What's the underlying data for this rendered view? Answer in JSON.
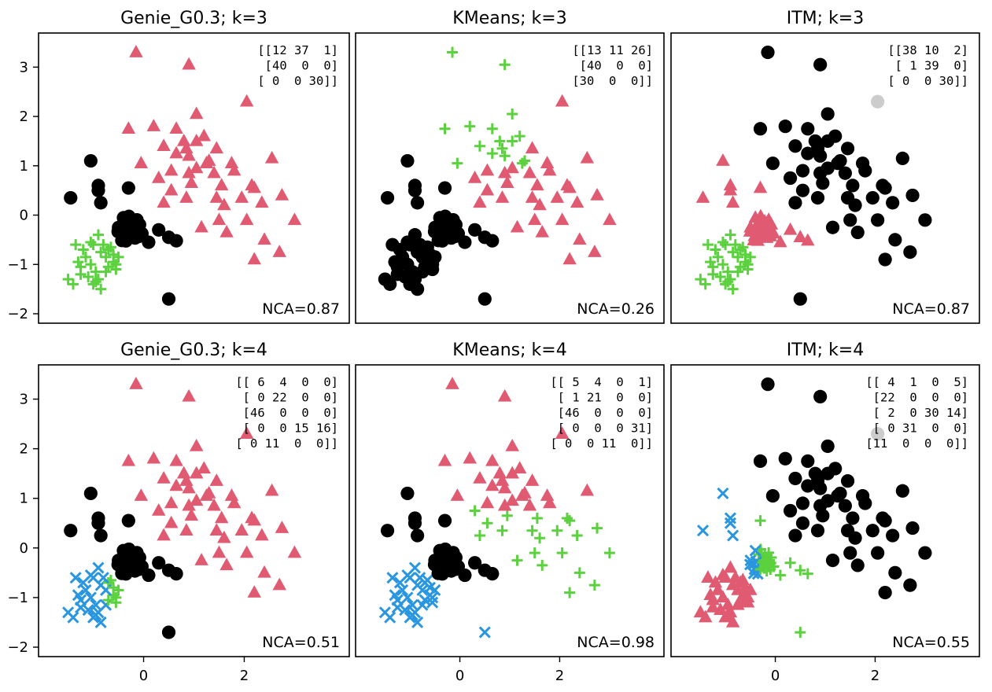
{
  "colors": {
    "black": "#000000",
    "red": "#e05a72",
    "green": "#5cd13f",
    "blue": "#2a96e0",
    "gray": "#cccccc"
  },
  "marker_names": {
    "black": "circle",
    "red": "triangle",
    "green": "plus",
    "blue": "x"
  },
  "chart_data": [
    {
      "type": "scatter",
      "title": "Genie_G0.3; k=3",
      "nca_label": "NCA=0.87",
      "confusion_lines": [
        "[[12 37  1]",
        " [40  0  0]",
        " [ 0  0 30]]"
      ],
      "xlim": [
        -1.9,
        3.9
      ],
      "ylim": [
        -2,
        3.5
      ],
      "xticks": [
        {
          "v": 0,
          "label": "0"
        },
        {
          "v": 2,
          "label": "2"
        }
      ],
      "yticks": [
        {
          "v": -2,
          "label": "−2"
        },
        {
          "v": -1,
          "label": "−1"
        },
        {
          "v": 0,
          "label": "0"
        },
        {
          "v": 1,
          "label": "1"
        },
        {
          "v": 2,
          "label": "2"
        },
        {
          "v": 3,
          "label": "3"
        }
      ],
      "show_xticks": false,
      "show_yticks": true
    },
    {
      "type": "scatter",
      "title": "KMeans; k=3",
      "nca_label": "NCA=0.26",
      "confusion_lines": [
        "[[13 11 26]",
        " [40  0  0]",
        " [30  0  0]]"
      ],
      "xlim": [
        -1.9,
        3.9
      ],
      "ylim": [
        -2,
        3.5
      ],
      "xticks": [
        {
          "v": 0,
          "label": "0"
        },
        {
          "v": 2,
          "label": "2"
        }
      ],
      "yticks": [
        {
          "v": -2,
          "label": "−2"
        },
        {
          "v": -1,
          "label": "−1"
        },
        {
          "v": 0,
          "label": "0"
        },
        {
          "v": 1,
          "label": "1"
        },
        {
          "v": 2,
          "label": "2"
        },
        {
          "v": 3,
          "label": "3"
        }
      ],
      "show_xticks": false,
      "show_yticks": false
    },
    {
      "type": "scatter",
      "title": "ITM; k=3",
      "nca_label": "NCA=0.87",
      "confusion_lines": [
        "[[38 10  2]",
        " [ 1 39  0]",
        " [ 0  0 30]]"
      ],
      "xlim": [
        -1.9,
        3.9
      ],
      "ylim": [
        -2,
        3.5
      ],
      "xticks": [
        {
          "v": 0,
          "label": "0"
        },
        {
          "v": 2,
          "label": "2"
        }
      ],
      "yticks": [
        {
          "v": -2,
          "label": "−2"
        },
        {
          "v": -1,
          "label": "−1"
        },
        {
          "v": 0,
          "label": "0"
        },
        {
          "v": 1,
          "label": "1"
        },
        {
          "v": 2,
          "label": "2"
        },
        {
          "v": 3,
          "label": "3"
        }
      ],
      "show_xticks": false,
      "show_yticks": false
    },
    {
      "type": "scatter",
      "title": "Genie_G0.3; k=4",
      "nca_label": "NCA=0.51",
      "confusion_lines": [
        "[[ 6  4  0  0]",
        " [ 0 22  0  0]",
        " [46  0  0  0]",
        " [ 0  0 15 16]",
        " [ 0 11  0  0]]"
      ],
      "xlim": [
        -1.9,
        3.9
      ],
      "ylim": [
        -2,
        3.5
      ],
      "xticks": [
        {
          "v": 0,
          "label": "0"
        },
        {
          "v": 2,
          "label": "2"
        }
      ],
      "yticks": [
        {
          "v": -2,
          "label": "−2"
        },
        {
          "v": -1,
          "label": "−1"
        },
        {
          "v": 0,
          "label": "0"
        },
        {
          "v": 1,
          "label": "1"
        },
        {
          "v": 2,
          "label": "2"
        },
        {
          "v": 3,
          "label": "3"
        }
      ],
      "show_xticks": true,
      "show_yticks": true
    },
    {
      "type": "scatter",
      "title": "KMeans; k=4",
      "nca_label": "NCA=0.98",
      "confusion_lines": [
        "[[ 5  4  0  1]",
        " [ 1 21  0  0]",
        " [46  0  0  0]",
        " [ 0  0  0 31]",
        " [ 0  0 11  0]]"
      ],
      "xlim": [
        -1.9,
        3.9
      ],
      "ylim": [
        -2,
        3.5
      ],
      "xticks": [
        {
          "v": 0,
          "label": "0"
        },
        {
          "v": 2,
          "label": "2"
        }
      ],
      "yticks": [
        {
          "v": -2,
          "label": "−2"
        },
        {
          "v": -1,
          "label": "−1"
        },
        {
          "v": 0,
          "label": "0"
        },
        {
          "v": 1,
          "label": "1"
        },
        {
          "v": 2,
          "label": "2"
        },
        {
          "v": 3,
          "label": "3"
        }
      ],
      "show_xticks": true,
      "show_yticks": false
    },
    {
      "type": "scatter",
      "title": "ITM; k=4",
      "nca_label": "NCA=0.55",
      "confusion_lines": [
        "[[ 4  1  0  5]",
        " [22  0  0  0]",
        " [ 2  0 30 14]",
        " [ 0 31  0  0]",
        " [11  0  0  0]]"
      ],
      "xlim": [
        -1.9,
        3.9
      ],
      "ylim": [
        -2,
        3.5
      ],
      "xticks": [
        {
          "v": 0,
          "label": "0"
        },
        {
          "v": 2,
          "label": "2"
        }
      ],
      "yticks": [
        {
          "v": -2,
          "label": "−2"
        },
        {
          "v": -1,
          "label": "−1"
        },
        {
          "v": 0,
          "label": "0"
        },
        {
          "v": 1,
          "label": "1"
        },
        {
          "v": 2,
          "label": "2"
        },
        {
          "v": 3,
          "label": "3"
        }
      ],
      "show_xticks": true,
      "show_yticks": false
    }
  ]
}
